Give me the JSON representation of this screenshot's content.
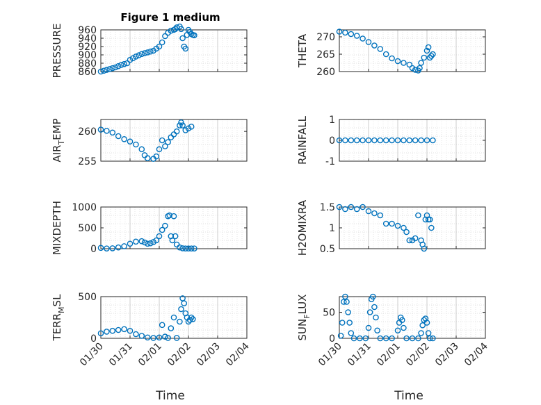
{
  "colors": {
    "marker": "#0072BD",
    "grid": "#d9d9d9",
    "axis": "#262626",
    "background": "#ffffff"
  },
  "figure": {
    "title": "Figure 1 medium",
    "xlabel": "Time"
  },
  "chart_data": [
    {
      "type": "scatter",
      "ylabel": "PRESSURE",
      "ylim": [
        860,
        960
      ],
      "yticks": [
        "960",
        "940",
        "920",
        "900",
        "880",
        "860"
      ],
      "ytick_values": [
        960,
        940,
        920,
        900,
        880,
        860
      ],
      "xlim": [
        "01/30",
        "02/04"
      ],
      "xticks": [
        "01/30",
        "01/31",
        "02/01",
        "02/02",
        "02/03",
        "02/04"
      ],
      "grid": true,
      "points": [
        [
          0.0,
          860
        ],
        [
          0.1,
          862
        ],
        [
          0.2,
          864
        ],
        [
          0.3,
          866
        ],
        [
          0.4,
          868
        ],
        [
          0.5,
          870
        ],
        [
          0.6,
          873
        ],
        [
          0.7,
          876
        ],
        [
          0.8,
          878
        ],
        [
          0.9,
          880
        ],
        [
          1.0,
          888
        ],
        [
          1.1,
          892
        ],
        [
          1.2,
          896
        ],
        [
          1.3,
          899
        ],
        [
          1.4,
          902
        ],
        [
          1.5,
          904
        ],
        [
          1.6,
          906
        ],
        [
          1.7,
          908
        ],
        [
          1.8,
          910
        ],
        [
          1.9,
          915
        ],
        [
          2.0,
          920
        ],
        [
          2.1,
          930
        ],
        [
          2.2,
          945
        ],
        [
          2.3,
          953
        ],
        [
          2.4,
          958
        ],
        [
          2.5,
          960
        ],
        [
          2.55,
          962
        ],
        [
          2.6,
          966
        ],
        [
          2.7,
          968
        ],
        [
          2.75,
          962
        ],
        [
          2.8,
          940
        ],
        [
          2.85,
          920
        ],
        [
          2.9,
          915
        ],
        [
          2.95,
          948
        ],
        [
          3.0,
          960
        ],
        [
          3.05,
          955
        ],
        [
          3.1,
          950
        ],
        [
          3.15,
          948
        ],
        [
          3.2,
          947
        ]
      ]
    },
    {
      "type": "scatter",
      "ylabel": "THETA",
      "ylim": [
        260,
        272
      ],
      "yticks": [
        "270",
        "265",
        "260"
      ],
      "ytick_values": [
        270,
        265,
        260
      ],
      "xlim": [
        "01/30",
        "02/04"
      ],
      "xticks": [
        "01/30",
        "01/31",
        "02/01",
        "02/02",
        "02/03",
        "02/04"
      ],
      "grid": true,
      "points": [
        [
          0.0,
          271.5
        ],
        [
          0.2,
          271.2
        ],
        [
          0.4,
          270.8
        ],
        [
          0.6,
          270.3
        ],
        [
          0.8,
          269.5
        ],
        [
          1.0,
          268.5
        ],
        [
          1.2,
          267.5
        ],
        [
          1.4,
          266.5
        ],
        [
          1.6,
          265.0
        ],
        [
          1.8,
          263.8
        ],
        [
          2.0,
          263.0
        ],
        [
          2.2,
          262.5
        ],
        [
          2.4,
          262.0
        ],
        [
          2.5,
          261.0
        ],
        [
          2.6,
          260.5
        ],
        [
          2.7,
          260.3
        ],
        [
          2.75,
          261.0
        ],
        [
          2.8,
          262.5
        ],
        [
          2.9,
          264.0
        ],
        [
          3.0,
          266.0
        ],
        [
          3.05,
          267.0
        ],
        [
          3.1,
          264.0
        ],
        [
          3.15,
          264.5
        ],
        [
          3.2,
          265.0
        ]
      ]
    },
    {
      "type": "scatter",
      "ylabel": "AIR_TEMP",
      "ylim": [
        255,
        262
      ],
      "yticks": [
        "260",
        "255"
      ],
      "ytick_values": [
        260,
        255
      ],
      "xlim": [
        "01/30",
        "02/04"
      ],
      "xticks": [
        "01/30",
        "01/31",
        "02/01",
        "02/02",
        "02/03",
        "02/04"
      ],
      "grid": true,
      "points": [
        [
          0.0,
          260.3
        ],
        [
          0.2,
          260.1
        ],
        [
          0.4,
          259.8
        ],
        [
          0.6,
          259.2
        ],
        [
          0.8,
          258.7
        ],
        [
          1.0,
          258.3
        ],
        [
          1.2,
          257.8
        ],
        [
          1.4,
          257.0
        ],
        [
          1.5,
          256.0
        ],
        [
          1.6,
          255.5
        ],
        [
          1.8,
          255.4
        ],
        [
          1.9,
          255.8
        ],
        [
          2.0,
          257.0
        ],
        [
          2.1,
          258.5
        ],
        [
          2.2,
          257.5
        ],
        [
          2.3,
          258.2
        ],
        [
          2.4,
          259.0
        ],
        [
          2.5,
          259.5
        ],
        [
          2.6,
          260.0
        ],
        [
          2.7,
          261.0
        ],
        [
          2.75,
          261.5
        ],
        [
          2.8,
          261.0
        ],
        [
          2.9,
          260.2
        ],
        [
          3.0,
          260.5
        ],
        [
          3.1,
          260.8
        ]
      ]
    },
    {
      "type": "scatter",
      "ylabel": "RAINFALL",
      "ylim": [
        -1,
        1
      ],
      "yticks": [
        "1",
        "0",
        "-1"
      ],
      "ytick_values": [
        1,
        0,
        -1
      ],
      "xlim": [
        "01/30",
        "02/04"
      ],
      "xticks": [
        "01/30",
        "01/31",
        "02/01",
        "02/02",
        "02/03",
        "02/04"
      ],
      "grid": true,
      "points": [
        [
          0.0,
          0
        ],
        [
          0.2,
          0
        ],
        [
          0.4,
          0
        ],
        [
          0.6,
          0
        ],
        [
          0.8,
          0
        ],
        [
          1.0,
          0
        ],
        [
          1.2,
          0
        ],
        [
          1.4,
          0
        ],
        [
          1.6,
          0
        ],
        [
          1.8,
          0
        ],
        [
          2.0,
          0
        ],
        [
          2.2,
          0
        ],
        [
          2.4,
          0
        ],
        [
          2.6,
          0
        ],
        [
          2.8,
          0
        ],
        [
          3.0,
          0
        ],
        [
          3.2,
          0
        ]
      ]
    },
    {
      "type": "scatter",
      "ylabel": "MIXDEPTH",
      "ylim": [
        0,
        1000
      ],
      "yticks": [
        "1000",
        "500",
        "0"
      ],
      "ytick_values": [
        1000,
        500,
        0
      ],
      "xlim": [
        "01/30",
        "02/04"
      ],
      "xticks": [
        "01/30",
        "01/31",
        "02/01",
        "02/02",
        "02/03",
        "02/04"
      ],
      "grid": true,
      "points": [
        [
          0.0,
          20
        ],
        [
          0.2,
          5
        ],
        [
          0.4,
          10
        ],
        [
          0.6,
          30
        ],
        [
          0.8,
          60
        ],
        [
          1.0,
          120
        ],
        [
          1.2,
          170
        ],
        [
          1.4,
          180
        ],
        [
          1.5,
          150
        ],
        [
          1.6,
          120
        ],
        [
          1.7,
          130
        ],
        [
          1.8,
          160
        ],
        [
          1.9,
          200
        ],
        [
          2.0,
          300
        ],
        [
          2.1,
          450
        ],
        [
          2.2,
          550
        ],
        [
          2.3,
          780
        ],
        [
          2.35,
          800
        ],
        [
          2.4,
          300
        ],
        [
          2.45,
          200
        ],
        [
          2.5,
          780
        ],
        [
          2.55,
          300
        ],
        [
          2.6,
          100
        ],
        [
          2.7,
          30
        ],
        [
          2.8,
          10
        ],
        [
          2.9,
          5
        ],
        [
          3.0,
          5
        ],
        [
          3.1,
          5
        ],
        [
          3.2,
          5
        ]
      ]
    },
    {
      "type": "scatter",
      "ylabel": "H2OMIXRA",
      "ylim": [
        0.5,
        1.5
      ],
      "yticks": [
        "1.5",
        "1",
        "0.5"
      ],
      "ytick_values": [
        1.5,
        1,
        0.5
      ],
      "xlim": [
        "01/30",
        "02/04"
      ],
      "xticks": [
        "01/30",
        "01/31",
        "02/01",
        "02/02",
        "02/03",
        "02/04"
      ],
      "grid": true,
      "points": [
        [
          0.0,
          1.5
        ],
        [
          0.2,
          1.45
        ],
        [
          0.4,
          1.5
        ],
        [
          0.6,
          1.45
        ],
        [
          0.8,
          1.5
        ],
        [
          1.0,
          1.4
        ],
        [
          1.2,
          1.35
        ],
        [
          1.4,
          1.3
        ],
        [
          1.6,
          1.1
        ],
        [
          1.8,
          1.1
        ],
        [
          2.0,
          1.05
        ],
        [
          2.2,
          1.0
        ],
        [
          2.3,
          0.9
        ],
        [
          2.4,
          0.7
        ],
        [
          2.5,
          0.7
        ],
        [
          2.6,
          0.75
        ],
        [
          2.7,
          1.3
        ],
        [
          2.8,
          0.7
        ],
        [
          2.85,
          0.6
        ],
        [
          2.9,
          0.5
        ],
        [
          2.95,
          1.2
        ],
        [
          3.0,
          1.3
        ],
        [
          3.05,
          1.2
        ],
        [
          3.1,
          1.2
        ],
        [
          3.15,
          1.0
        ]
      ]
    },
    {
      "type": "scatter",
      "ylabel": "TERR_MSL",
      "ylim": [
        0,
        500
      ],
      "yticks": [
        "500",
        "0"
      ],
      "ytick_values": [
        500,
        0
      ],
      "xlim": [
        "01/30",
        "02/04"
      ],
      "xticks": [
        "01/30",
        "01/31",
        "02/01",
        "02/02",
        "02/03",
        "02/04"
      ],
      "grid": true,
      "points": [
        [
          0.0,
          60
        ],
        [
          0.2,
          80
        ],
        [
          0.4,
          90
        ],
        [
          0.6,
          100
        ],
        [
          0.8,
          110
        ],
        [
          1.0,
          90
        ],
        [
          1.2,
          50
        ],
        [
          1.4,
          30
        ],
        [
          1.6,
          10
        ],
        [
          1.8,
          5
        ],
        [
          2.0,
          10
        ],
        [
          2.1,
          160
        ],
        [
          2.2,
          20
        ],
        [
          2.3,
          5
        ],
        [
          2.4,
          120
        ],
        [
          2.5,
          250
        ],
        [
          2.6,
          5
        ],
        [
          2.7,
          200
        ],
        [
          2.75,
          350
        ],
        [
          2.8,
          480
        ],
        [
          2.85,
          420
        ],
        [
          2.9,
          300
        ],
        [
          2.95,
          250
        ],
        [
          3.0,
          200
        ],
        [
          3.05,
          220
        ],
        [
          3.1,
          250
        ],
        [
          3.15,
          230
        ]
      ]
    },
    {
      "type": "scatter",
      "ylabel": "SUN_FLUX",
      "ylim": [
        0,
        80
      ],
      "yticks": [
        "50",
        "0"
      ],
      "ytick_values": [
        50,
        0
      ],
      "xlim": [
        "01/30",
        "02/04"
      ],
      "xticks": [
        "01/30",
        "01/31",
        "02/01",
        "02/02",
        "02/03",
        "02/04"
      ],
      "grid": true,
      "points": [
        [
          0.05,
          5
        ],
        [
          0.1,
          30
        ],
        [
          0.15,
          70
        ],
        [
          0.2,
          80
        ],
        [
          0.25,
          70
        ],
        [
          0.3,
          50
        ],
        [
          0.35,
          30
        ],
        [
          0.4,
          10
        ],
        [
          0.5,
          0
        ],
        [
          0.7,
          0
        ],
        [
          0.9,
          0
        ],
        [
          1.0,
          20
        ],
        [
          1.05,
          50
        ],
        [
          1.1,
          75
        ],
        [
          1.15,
          80
        ],
        [
          1.2,
          60
        ],
        [
          1.25,
          40
        ],
        [
          1.3,
          15
        ],
        [
          1.4,
          0
        ],
        [
          1.6,
          0
        ],
        [
          1.8,
          0
        ],
        [
          2.0,
          15
        ],
        [
          2.05,
          30
        ],
        [
          2.1,
          40
        ],
        [
          2.15,
          35
        ],
        [
          2.2,
          20
        ],
        [
          2.3,
          0
        ],
        [
          2.5,
          0
        ],
        [
          2.7,
          0
        ],
        [
          2.8,
          10
        ],
        [
          2.85,
          25
        ],
        [
          2.9,
          35
        ],
        [
          2.95,
          38
        ],
        [
          3.0,
          30
        ],
        [
          3.05,
          10
        ],
        [
          3.1,
          0
        ],
        [
          3.2,
          0
        ]
      ]
    }
  ]
}
